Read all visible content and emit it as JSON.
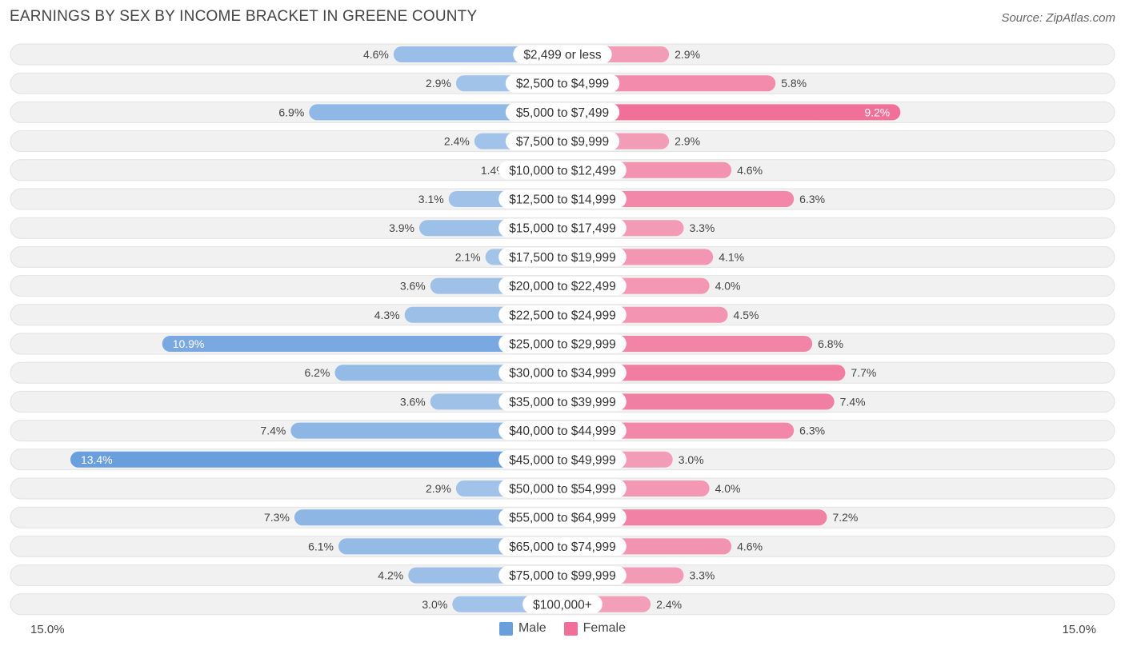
{
  "title": "EARNINGS BY SEX BY INCOME BRACKET IN GREENE COUNTY",
  "source": "Source: ZipAtlas.com",
  "colors": {
    "male_light": "#a7c6ea",
    "male_dark": "#6a9fde",
    "female_light": "#f4a6bf",
    "female_dark": "#f07099",
    "row_bg": "#f1f1f1",
    "row_border": "#e2e2e2"
  },
  "legend": {
    "male": "Male",
    "female": "Female"
  },
  "axis": {
    "left": "15.0%",
    "right": "15.0%"
  },
  "chart_data": {
    "type": "bar",
    "orientation": "horizontal-diverging",
    "title": "EARNINGS BY SEX BY INCOME BRACKET IN GREENE COUNTY",
    "xlim": [
      -15.0,
      15.0
    ],
    "categories": [
      "$2,499 or less",
      "$2,500 to $4,999",
      "$5,000 to $7,499",
      "$7,500 to $9,999",
      "$10,000 to $12,499",
      "$12,500 to $14,999",
      "$15,000 to $17,499",
      "$17,500 to $19,999",
      "$20,000 to $22,499",
      "$22,500 to $24,999",
      "$25,000 to $29,999",
      "$30,000 to $34,999",
      "$35,000 to $39,999",
      "$40,000 to $44,999",
      "$45,000 to $49,999",
      "$50,000 to $54,999",
      "$55,000 to $64,999",
      "$65,000 to $74,999",
      "$75,000 to $99,999",
      "$100,000+"
    ],
    "series": [
      {
        "name": "Male",
        "values": [
          4.6,
          2.9,
          6.9,
          2.4,
          1.4,
          3.1,
          3.9,
          2.1,
          3.6,
          4.3,
          10.9,
          6.2,
          3.6,
          7.4,
          13.4,
          2.9,
          7.3,
          6.1,
          4.2,
          3.0
        ],
        "labels": [
          "4.6%",
          "2.9%",
          "6.9%",
          "2.4%",
          "1.4%",
          "3.1%",
          "3.9%",
          "2.1%",
          "3.6%",
          "4.3%",
          "10.9%",
          "6.2%",
          "3.6%",
          "7.4%",
          "13.4%",
          "2.9%",
          "7.3%",
          "6.1%",
          "4.2%",
          "3.0%"
        ]
      },
      {
        "name": "Female",
        "values": [
          2.9,
          5.8,
          9.2,
          2.9,
          4.6,
          6.3,
          3.3,
          4.1,
          4.0,
          4.5,
          6.8,
          7.7,
          7.4,
          6.3,
          3.0,
          4.0,
          7.2,
          4.6,
          3.3,
          2.4
        ],
        "labels": [
          "2.9%",
          "5.8%",
          "9.2%",
          "2.9%",
          "4.6%",
          "6.3%",
          "3.3%",
          "4.1%",
          "4.0%",
          "4.5%",
          "6.8%",
          "7.7%",
          "7.4%",
          "6.3%",
          "3.0%",
          "4.0%",
          "7.2%",
          "4.6%",
          "3.3%",
          "2.4%"
        ]
      }
    ]
  }
}
